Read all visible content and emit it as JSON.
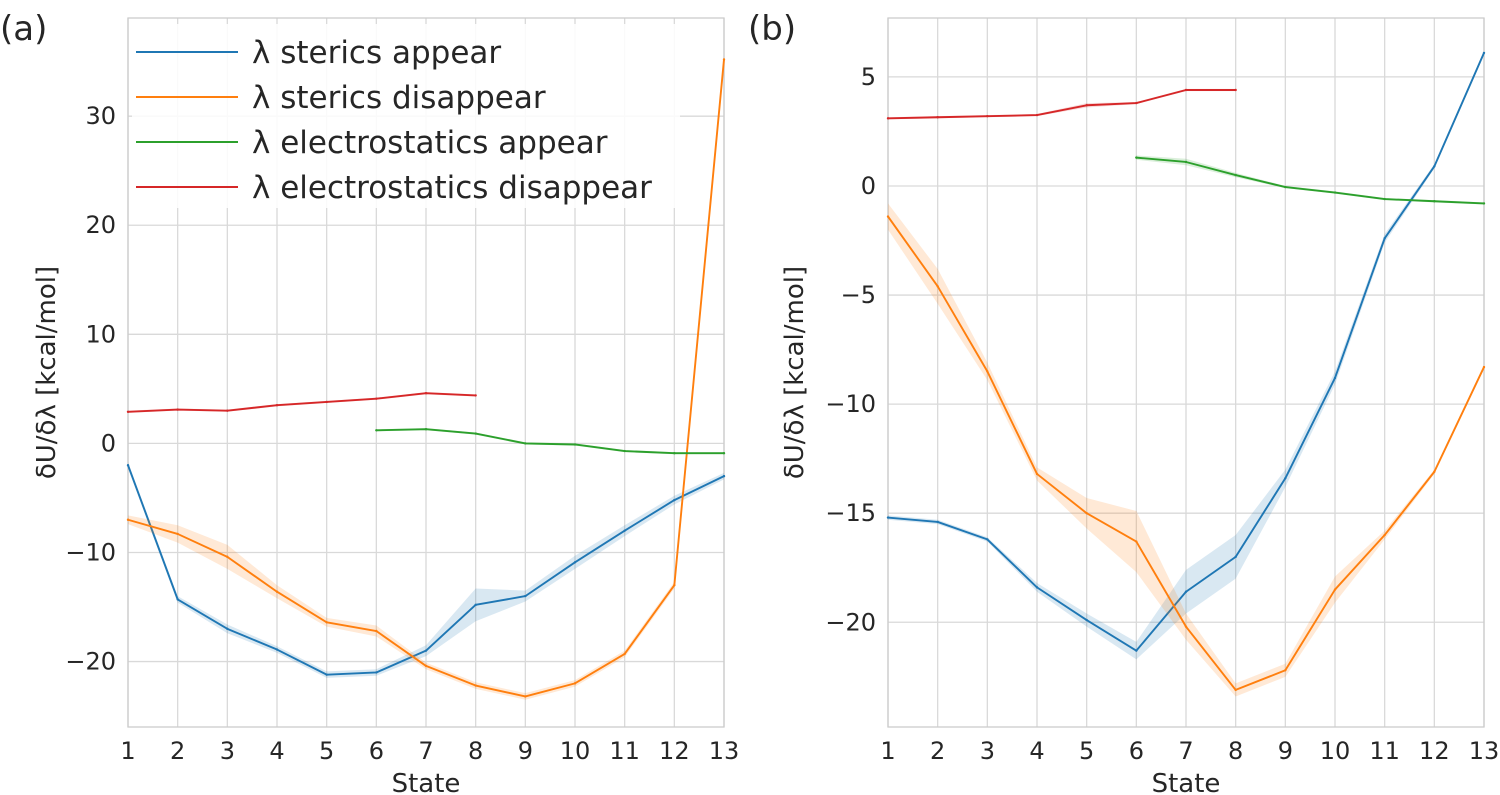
{
  "chart_data": [
    {
      "panel": "(a)",
      "type": "line",
      "xlabel": "State",
      "ylabel": "δU/δλ [kcal/mol]",
      "xlim": [
        1,
        13
      ],
      "ylim": [
        -26,
        39
      ],
      "x_ticks": [
        1,
        2,
        3,
        4,
        5,
        6,
        7,
        8,
        9,
        10,
        11,
        12,
        13
      ],
      "y_ticks": [
        -20,
        -10,
        0,
        10,
        20,
        30
      ],
      "y_tick_labels": [
        "−20",
        "−10",
        "0",
        "10",
        "20",
        "30"
      ],
      "grid": true,
      "legend_position": "top-left",
      "series": [
        {
          "name": "λ sterics appear",
          "color": "#1f77b4",
          "x": [
            1,
            2,
            3,
            4,
            5,
            6,
            7,
            8,
            9,
            10,
            11,
            12,
            13
          ],
          "y": [
            -2,
            -14.3,
            -17,
            -18.9,
            -21.2,
            -21,
            -19,
            -14.8,
            -14,
            -10.9,
            -8,
            -5.2,
            -3
          ],
          "err": [
            0.3,
            0.3,
            0.4,
            0.3,
            0.3,
            0.3,
            0.5,
            1.5,
            0.5,
            0.6,
            0.5,
            0.4,
            0.3
          ]
        },
        {
          "name": "λ sterics disappear",
          "color": "#ff7f0e",
          "x": [
            1,
            2,
            3,
            4,
            5,
            6,
            7,
            8,
            9,
            10,
            11,
            12,
            13
          ],
          "y": [
            -7,
            -8.3,
            -10.4,
            -13.6,
            -16.4,
            -17.2,
            -20.4,
            -22.2,
            -23.2,
            -22,
            -19.3,
            -13,
            35.2
          ],
          "err": [
            0.4,
            0.8,
            1.1,
            0.6,
            0.4,
            0.5,
            0.3,
            0.3,
            0.3,
            0.3,
            0.3,
            0.3,
            0.3
          ]
        },
        {
          "name": "λ electrostatics appear",
          "color": "#2ca02c",
          "x": [
            6,
            7,
            8,
            9,
            10,
            11,
            12,
            13
          ],
          "y": [
            1.2,
            1.3,
            0.9,
            0,
            -0.1,
            -0.7,
            -0.9,
            -0.9
          ],
          "err": [
            0.1,
            0.1,
            0.1,
            0.1,
            0.1,
            0.1,
            0.1,
            0.1
          ]
        },
        {
          "name": "λ electrostatics disappear",
          "color": "#d62728",
          "x": [
            1,
            2,
            3,
            4,
            5,
            6,
            7,
            8
          ],
          "y": [
            2.9,
            3.1,
            3,
            3.5,
            3.8,
            4.1,
            4.6,
            4.4
          ],
          "err": [
            0.1,
            0.1,
            0.1,
            0.1,
            0.1,
            0.1,
            0.1,
            0.1
          ]
        }
      ]
    },
    {
      "panel": "(b)",
      "type": "line",
      "xlabel": "State",
      "ylabel": "δU/δλ [kcal/mol]",
      "xlim": [
        1,
        13
      ],
      "ylim": [
        -24.8,
        7.7
      ],
      "x_ticks": [
        1,
        2,
        3,
        4,
        5,
        6,
        7,
        8,
        9,
        10,
        11,
        12,
        13
      ],
      "y_ticks": [
        -20,
        -15,
        -10,
        -5,
        0,
        5
      ],
      "y_tick_labels": [
        "−20",
        "−15",
        "−10",
        "−5",
        "0",
        "5"
      ],
      "grid": true,
      "series": [
        {
          "name": "λ sterics appear",
          "color": "#1f77b4",
          "x": [
            1,
            2,
            3,
            4,
            5,
            6,
            7,
            8,
            9,
            10,
            11,
            12,
            13
          ],
          "y": [
            -15.2,
            -15.4,
            -16.2,
            -18.4,
            -19.9,
            -21.3,
            -18.6,
            -17,
            -13.4,
            -8.8,
            -2.4,
            0.9,
            6.1
          ],
          "err": [
            0.1,
            0.1,
            0.1,
            0.2,
            0.3,
            0.4,
            1.0,
            1.0,
            0.4,
            0.3,
            0.2,
            0.1,
            0.1
          ]
        },
        {
          "name": "λ sterics disappear",
          "color": "#ff7f0e",
          "x": [
            1,
            2,
            3,
            4,
            5,
            6,
            7,
            8,
            9,
            10,
            11,
            12,
            13
          ],
          "y": [
            -1.4,
            -4.6,
            -8.5,
            -13.2,
            -15,
            -16.3,
            -20.2,
            -23.1,
            -22.2,
            -18.5,
            -16,
            -13.1,
            -8.3
          ],
          "err": [
            0.6,
            0.8,
            0.4,
            0.3,
            0.7,
            1.4,
            0.6,
            0.3,
            0.3,
            0.6,
            0.2,
            0.1,
            0.1
          ]
        },
        {
          "name": "λ electrostatics appear",
          "color": "#2ca02c",
          "x": [
            6,
            7,
            8,
            9,
            10,
            11,
            12,
            13
          ],
          "y": [
            1.3,
            1.1,
            0.5,
            -0.05,
            -0.3,
            -0.6,
            -0.7,
            -0.8
          ],
          "err": [
            0.1,
            0.15,
            0.1,
            0.05,
            0.05,
            0.05,
            0.05,
            0.05
          ]
        },
        {
          "name": "λ electrostatics disappear",
          "color": "#d62728",
          "x": [
            1,
            2,
            3,
            4,
            5,
            6,
            7,
            8
          ],
          "y": [
            3.1,
            3.15,
            3.2,
            3.25,
            3.7,
            3.8,
            4.4,
            4.4
          ],
          "err": [
            0.05,
            0.05,
            0.05,
            0.05,
            0.1,
            0.05,
            0.05,
            0.05
          ]
        }
      ]
    }
  ]
}
